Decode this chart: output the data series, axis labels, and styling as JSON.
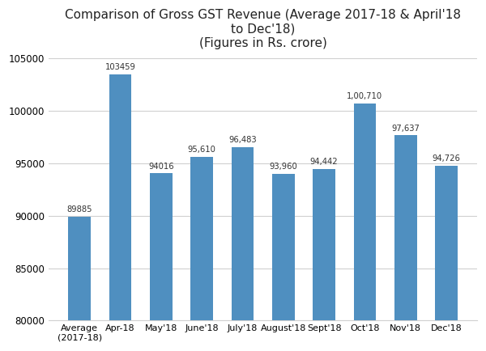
{
  "categories": [
    "Average\n(2017-18)",
    "Apr-18",
    "May'18",
    "June'18",
    "July'18",
    "August'18",
    "Sept'18",
    "Oct'18",
    "Nov'18",
    "Dec'18"
  ],
  "values": [
    89885,
    103459,
    94016,
    95610,
    96483,
    93960,
    94442,
    100710,
    97637,
    94726
  ],
  "labels": [
    "89885",
    "103459",
    "94016",
    "95,610",
    "96,483",
    "93,960",
    "94,442",
    "1,00,710",
    "97,637",
    "94,726"
  ],
  "bar_color": "#4F8FC0",
  "title_text": "Comparison of Gross GST Revenue (Average 2017-18 & April'18\nto Dec'18)\n(Figures in Rs. crore)",
  "ylim": [
    80000,
    105000
  ],
  "yticks": [
    80000,
    85000,
    90000,
    95000,
    100000,
    105000
  ],
  "ytick_labels": [
    "80000",
    "85000",
    "90000",
    "95000",
    "100000",
    "105000"
  ],
  "background_color": "#ffffff",
  "grid_color": "#d0d0d0"
}
